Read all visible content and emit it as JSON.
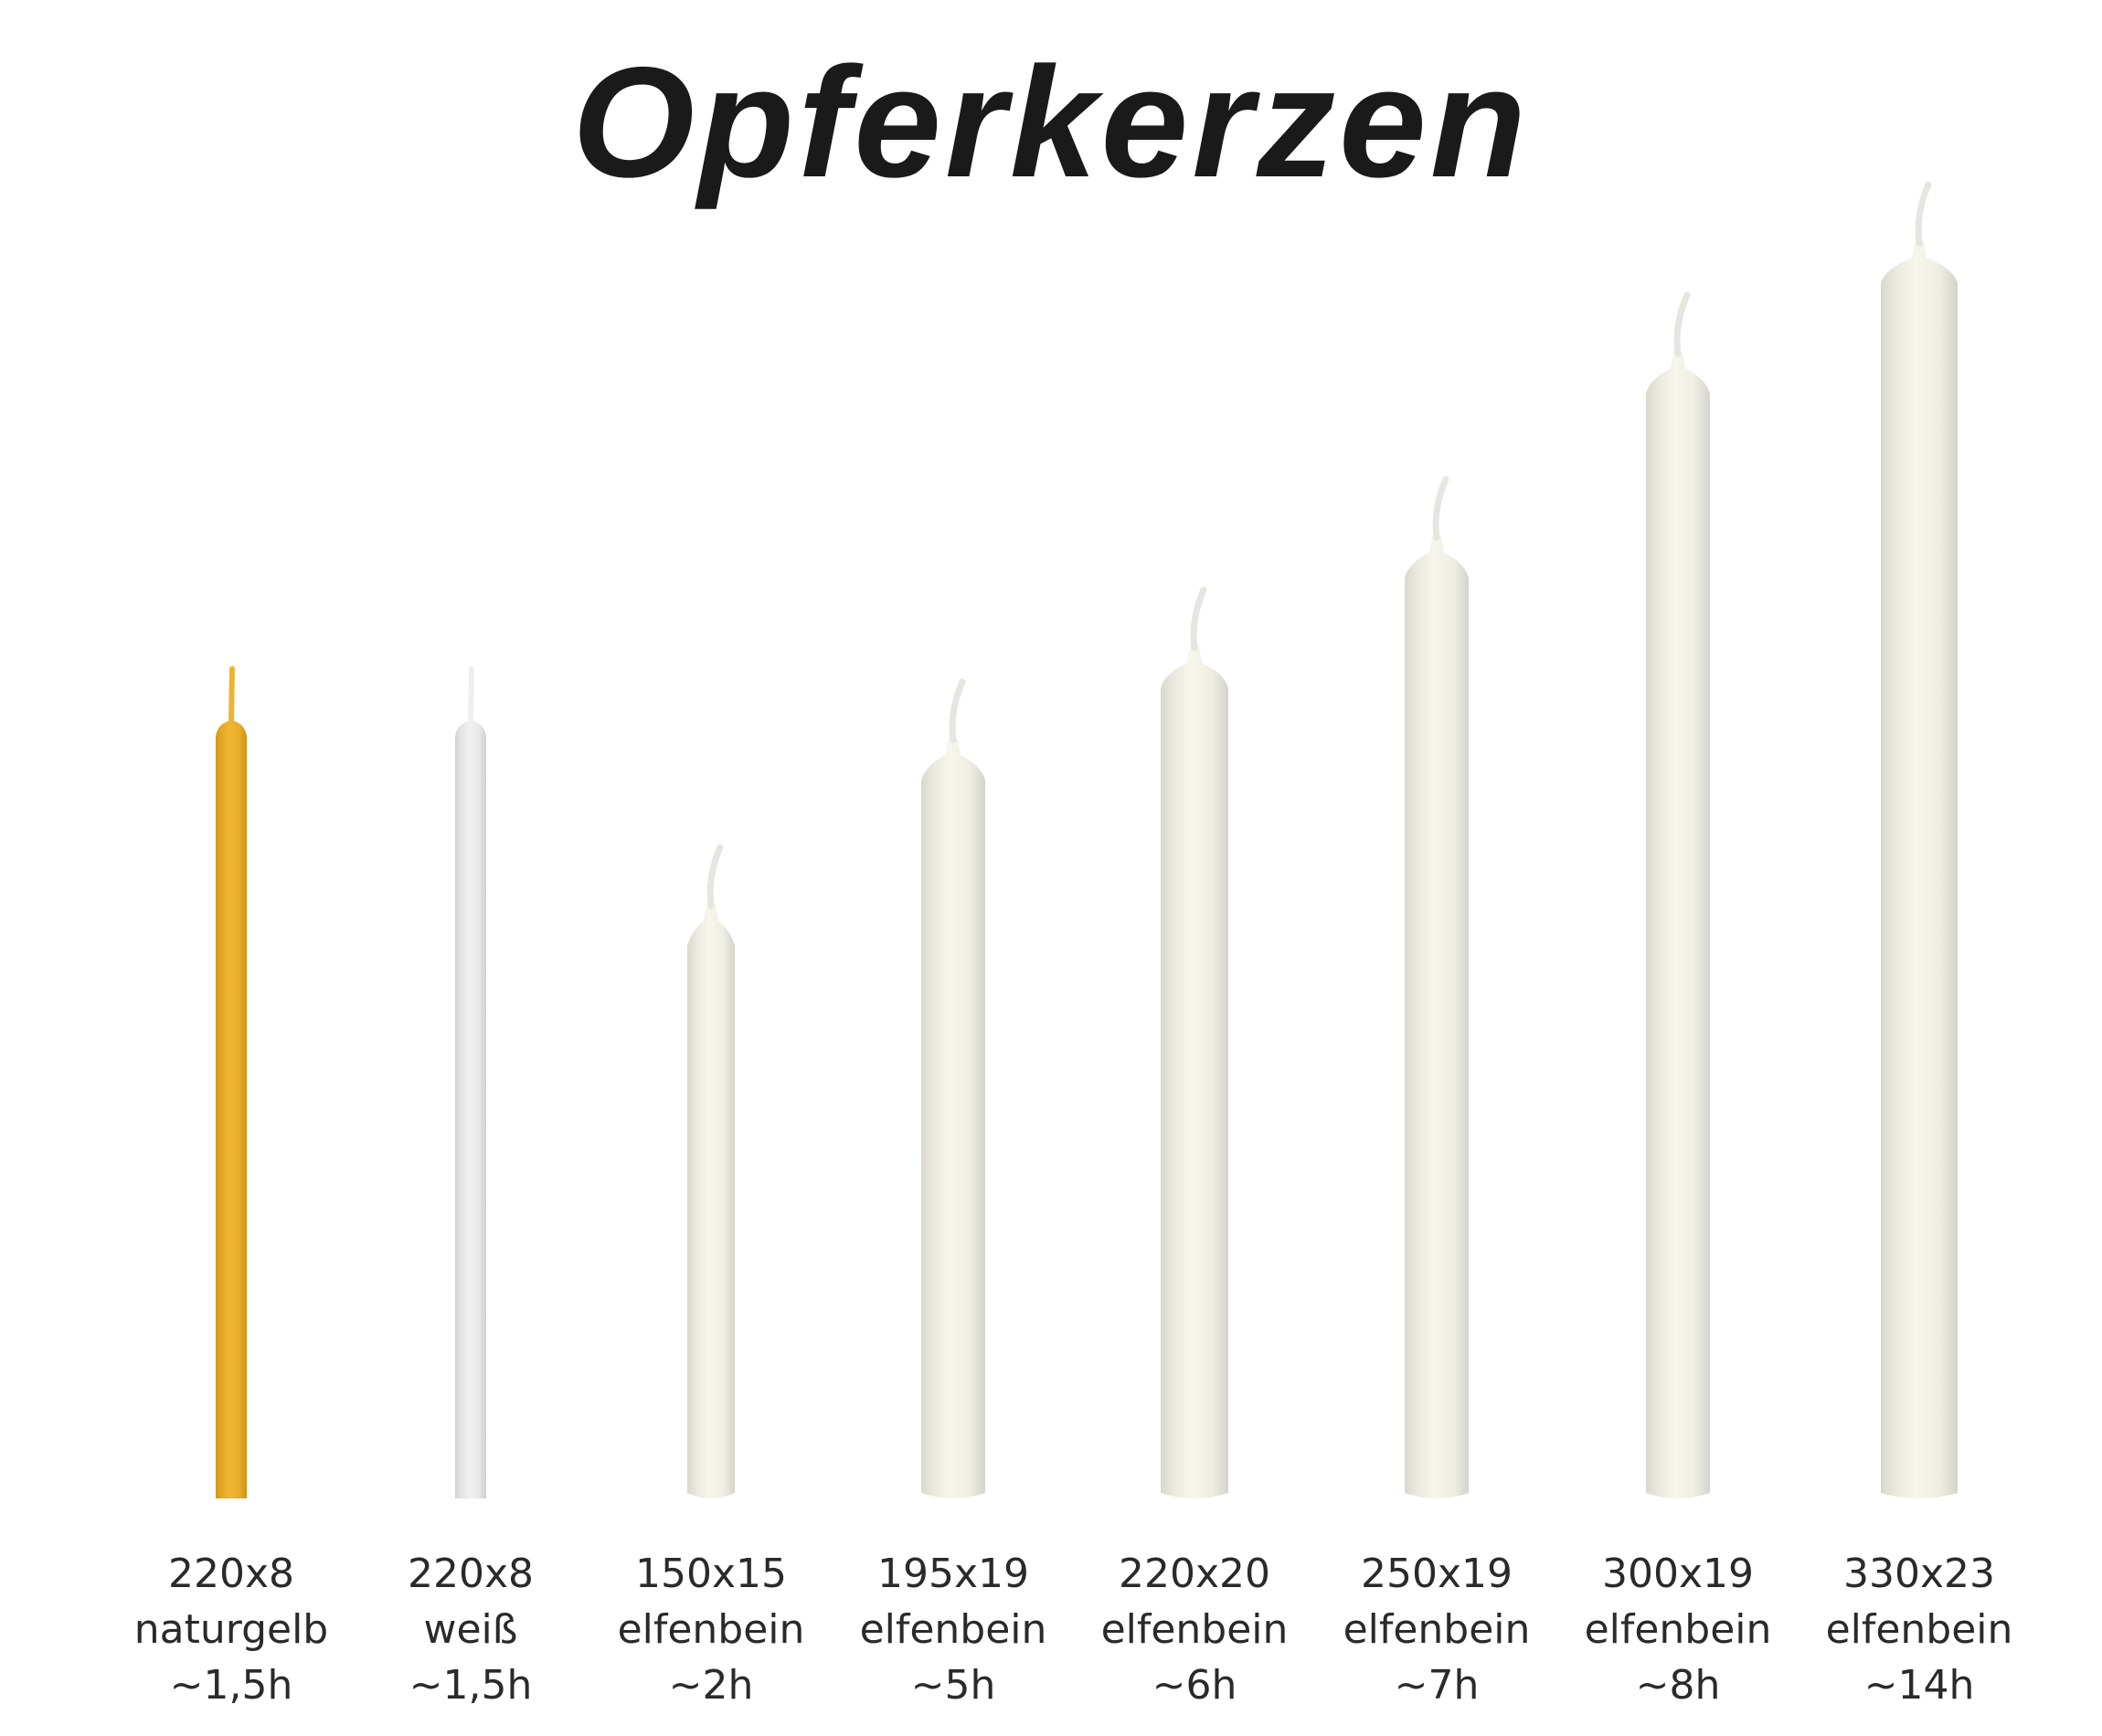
{
  "title": "Opferkerzen",
  "candles": [
    {
      "size": "220x8",
      "color_name": "naturgelb",
      "burn_time": "~1,5h",
      "wax_color": "#e8ad2a",
      "style": "taper"
    },
    {
      "size": "220x8",
      "color_name": "weiß",
      "burn_time": "~1,5h",
      "wax_color": "#e9e9e9",
      "style": "taper"
    },
    {
      "size": "150x15",
      "color_name": "elfenbein",
      "burn_time": "~2h",
      "wax_color": "#efeee4",
      "style": "pillar"
    },
    {
      "size": "195x19",
      "color_name": "elfenbein",
      "burn_time": "~5h",
      "wax_color": "#efeee4",
      "style": "pillar"
    },
    {
      "size": "220x20",
      "color_name": "elfenbein",
      "burn_time": "~6h",
      "wax_color": "#efeee4",
      "style": "pillar"
    },
    {
      "size": "250x19",
      "color_name": "elfenbein",
      "burn_time": "~7h",
      "wax_color": "#efeee4",
      "style": "pillar"
    },
    {
      "size": "300x19",
      "color_name": "elfenbein",
      "burn_time": "~8h",
      "wax_color": "#efeee4",
      "style": "pillar"
    },
    {
      "size": "330x23",
      "color_name": "elfenbein",
      "burn_time": "~14h",
      "wax_color": "#efeee4",
      "style": "pillar"
    }
  ]
}
